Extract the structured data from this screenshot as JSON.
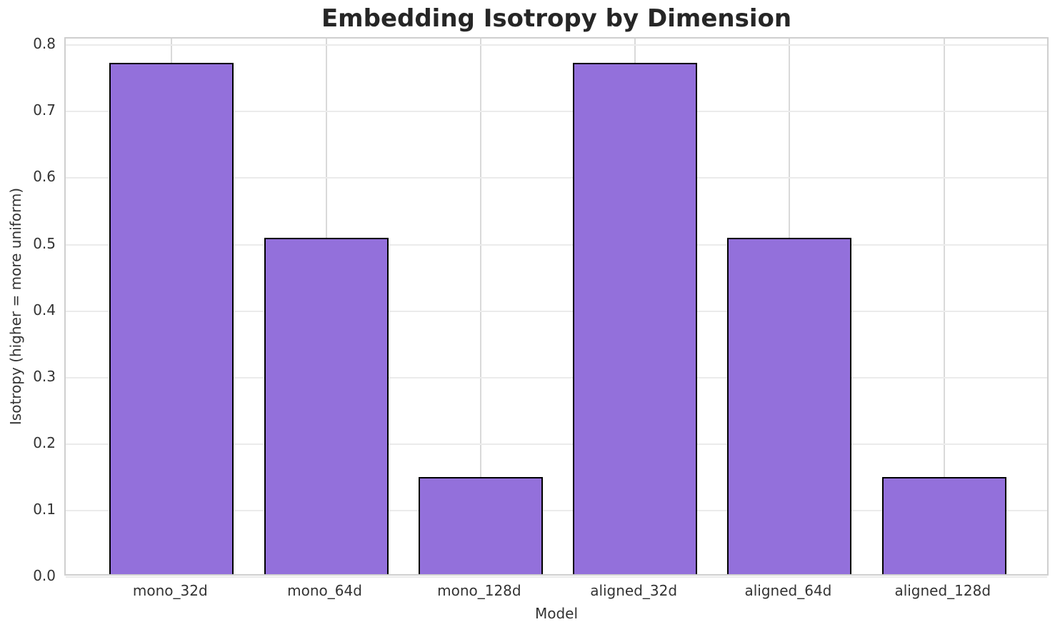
{
  "chart_data": {
    "type": "bar",
    "title": "Embedding Isotropy by Dimension",
    "xlabel": "Model",
    "ylabel": "Isotropy (higher = more uniform)",
    "categories": [
      "mono_32d",
      "mono_64d",
      "mono_128d",
      "aligned_32d",
      "aligned_64d",
      "aligned_128d"
    ],
    "values": [
      0.769,
      0.506,
      0.146,
      0.769,
      0.506,
      0.146
    ],
    "ylim": [
      0,
      0.81
    ],
    "y_ticks": [
      0.0,
      0.1,
      0.2,
      0.3,
      0.4,
      0.5,
      0.6,
      0.7,
      0.8
    ],
    "y_tick_labels": [
      "0.0",
      "0.1",
      "0.2",
      "0.3",
      "0.4",
      "0.5",
      "0.6",
      "0.7",
      "0.8"
    ],
    "grid": "both",
    "legend": "none",
    "colors": {
      "bar_fill": "#9370db",
      "bar_edge": "#000000",
      "grid_horizontal": "#ebebeb",
      "grid_vertical": "#d9d9d9",
      "spine": "#cfcfcf",
      "title_text": "#262626",
      "tick_text": "#333333",
      "background": "#ffffff"
    }
  }
}
